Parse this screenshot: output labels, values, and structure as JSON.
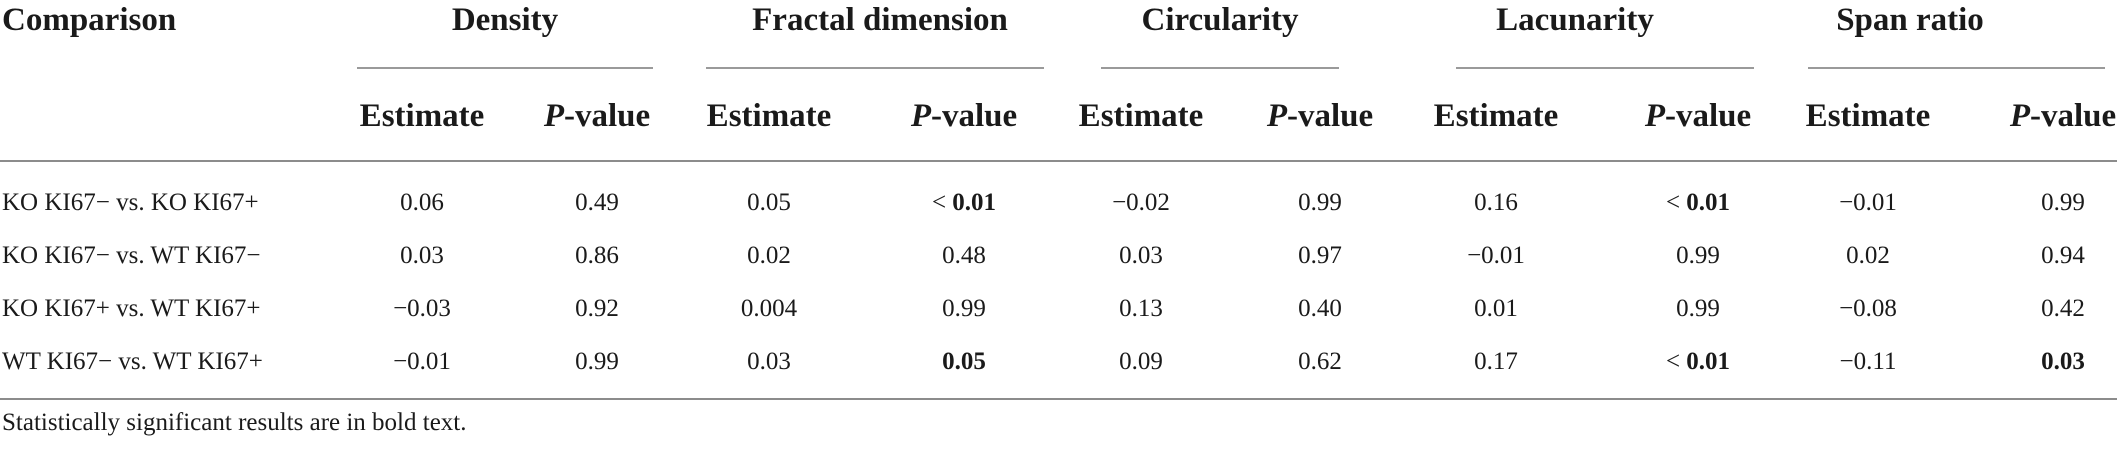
{
  "table": {
    "first_col_header": "Comparison",
    "groups": [
      "Density",
      "Fractal dimension",
      "Circularity",
      "Lacunarity",
      "Span ratio"
    ],
    "sub_headers": {
      "estimate": "Estimate",
      "p_italic": "P",
      "p_rest": "-value"
    },
    "rows": [
      {
        "label": "KO KI67− vs. KO KI67+",
        "cells": [
          {
            "text": "0.06"
          },
          {
            "text": "0.49"
          },
          {
            "text": "0.05"
          },
          {
            "prefix": "< ",
            "text": "0.01",
            "bold": true
          },
          {
            "text": "−0.02"
          },
          {
            "text": "0.99"
          },
          {
            "text": "0.16"
          },
          {
            "prefix": "< ",
            "text": "0.01",
            "bold": true
          },
          {
            "text": "−0.01"
          },
          {
            "text": "0.99"
          }
        ]
      },
      {
        "label": "KO KI67− vs. WT KI67−",
        "cells": [
          {
            "text": "0.03"
          },
          {
            "text": "0.86"
          },
          {
            "text": "0.02"
          },
          {
            "text": "0.48"
          },
          {
            "text": "0.03"
          },
          {
            "text": "0.97"
          },
          {
            "text": "−0.01"
          },
          {
            "text": "0.99"
          },
          {
            "text": "0.02"
          },
          {
            "text": "0.94"
          }
        ]
      },
      {
        "label": "KO KI67+ vs. WT KI67+",
        "cells": [
          {
            "text": "−0.03"
          },
          {
            "text": "0.92"
          },
          {
            "text": "0.004"
          },
          {
            "text": "0.99"
          },
          {
            "text": "0.13"
          },
          {
            "text": "0.40"
          },
          {
            "text": "0.01"
          },
          {
            "text": "0.99"
          },
          {
            "text": "−0.08"
          },
          {
            "text": "0.42"
          }
        ]
      },
      {
        "label": "WT KI67− vs. WT KI67+",
        "cells": [
          {
            "text": "−0.01"
          },
          {
            "text": "0.99"
          },
          {
            "text": "0.03"
          },
          {
            "text": "0.05",
            "bold": true
          },
          {
            "text": "0.09"
          },
          {
            "text": "0.62"
          },
          {
            "text": "0.17"
          },
          {
            "prefix": "< ",
            "text": "0.01",
            "bold": true
          },
          {
            "text": "−0.11"
          },
          {
            "text": "0.03",
            "bold": true
          }
        ]
      }
    ],
    "footnote": "Statistically significant results are in bold text."
  }
}
